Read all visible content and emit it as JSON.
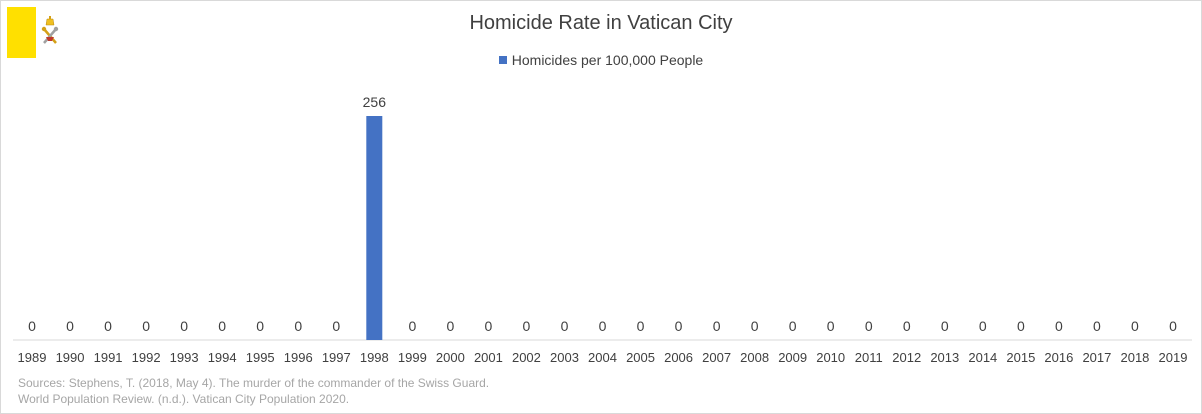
{
  "flag": {
    "yellow": "#ffe000",
    "white": "#ffffff",
    "name": "vatican-flag"
  },
  "chart_data": {
    "type": "bar",
    "title": "Homicide Rate in Vatican City",
    "xlabel": "",
    "ylabel": "",
    "categories": [
      "1989",
      "1990",
      "1991",
      "1992",
      "1993",
      "1994",
      "1995",
      "1996",
      "1997",
      "1998",
      "1999",
      "2000",
      "2001",
      "2002",
      "2003",
      "2004",
      "2005",
      "2006",
      "2007",
      "2008",
      "2009",
      "2010",
      "2011",
      "2012",
      "2013",
      "2014",
      "2015",
      "2016",
      "2017",
      "2018",
      "2019"
    ],
    "series": [
      {
        "name": "Homicides per 100,000 People",
        "values": [
          0,
          0,
          0,
          0,
          0,
          0,
          0,
          0,
          0,
          256,
          0,
          0,
          0,
          0,
          0,
          0,
          0,
          0,
          0,
          0,
          0,
          0,
          0,
          0,
          0,
          0,
          0,
          0,
          0,
          0,
          0
        ],
        "color": "#4472c4"
      }
    ],
    "ylim": [
      0,
      256
    ],
    "grid": false,
    "legend": "top-center",
    "data_labels": true
  },
  "sources": [
    "Sources: Stephens, T. (2018, May 4).  The murder of the commander of the Swiss Guard.",
    "World Population Review. (n.d.). Vatican City Population 2020."
  ]
}
